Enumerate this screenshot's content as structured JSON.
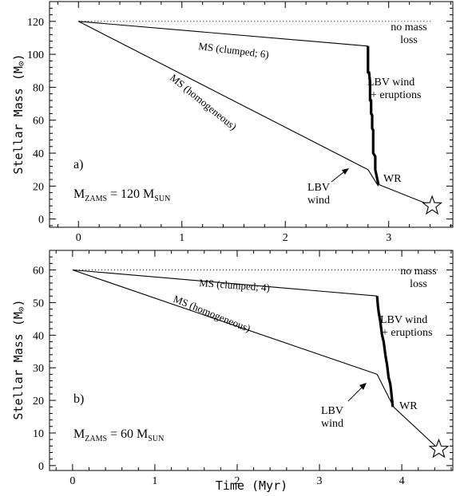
{
  "chart_data": [
    {
      "type": "line",
      "panel_label": "a)",
      "mass_label": {
        "prefix": "M",
        "sub1": "ZAMS",
        "mid": " = 120 M",
        "sub2": "SUN"
      },
      "ylabel": "Stellar Mass (M",
      "ylabel_symbol": "⊙",
      "ylabel_close": ")",
      "xlabel": "",
      "xlim": [
        -0.28,
        3.62
      ],
      "ylim": [
        -5,
        132
      ],
      "xticks": [
        0,
        1,
        2,
        3
      ],
      "yticks": [
        0,
        20,
        40,
        60,
        80,
        100,
        120
      ],
      "series": [
        {
          "name": "no mass loss",
          "style": "dotted",
          "x": [
            0,
            3.42
          ],
          "y": [
            120,
            120
          ]
        },
        {
          "name": "MS (clumped; 6)",
          "style": "thin",
          "x": [
            0,
            2.8
          ],
          "y": [
            120,
            105
          ]
        },
        {
          "name": "LBV wind + eruptions",
          "style": "thick",
          "x": [
            2.8,
            2.8,
            2.81,
            2.82,
            2.82,
            2.83,
            2.83,
            2.84,
            2.84,
            2.85,
            2.85,
            2.87,
            2.87,
            2.9
          ],
          "y": [
            105,
            89,
            89,
            83,
            72,
            72,
            64,
            63,
            55,
            54,
            40,
            38,
            30,
            21
          ]
        },
        {
          "name": "MS (homogeneous)",
          "style": "thin",
          "x": [
            0,
            2.8,
            2.9
          ],
          "y": [
            120,
            30,
            20
          ]
        },
        {
          "name": "WR",
          "style": "thin",
          "x": [
            2.9,
            3.42
          ],
          "y": [
            21,
            8
          ]
        }
      ],
      "annotations": {
        "no_mass_loss_1": "no mass",
        "no_mass_loss_2": "loss",
        "ms_clumped": "MS (clumped; 6)",
        "ms_homog": "MS (homogeneous)",
        "lbv_erupt_1": "LBV wind",
        "lbv_erupt_2": "+ eruptions",
        "lbv_wind_1": "LBV",
        "lbv_wind_2": "wind",
        "wr": "WR"
      },
      "star": {
        "x": 3.42,
        "y": 8
      }
    },
    {
      "type": "line",
      "panel_label": "b)",
      "mass_label": {
        "prefix": "M",
        "sub1": "ZAMS",
        "mid": " = 60 M",
        "sub2": "SUN"
      },
      "ylabel": "Stellar Mass (M",
      "ylabel_symbol": "⊙",
      "ylabel_close": ")",
      "xlabel": "Time (Myr)",
      "xlim": [
        -0.28,
        4.62
      ],
      "ylim": [
        -1.5,
        66
      ],
      "xticks": [
        0,
        1,
        2,
        3,
        4
      ],
      "yticks": [
        0,
        10,
        20,
        30,
        40,
        50,
        60
      ],
      "series": [
        {
          "name": "no mass loss",
          "style": "dotted",
          "x": [
            0,
            4.45
          ],
          "y": [
            60,
            60
          ]
        },
        {
          "name": "MS (clumped; 4)",
          "style": "thin",
          "x": [
            0,
            3.7
          ],
          "y": [
            60,
            52
          ]
        },
        {
          "name": "LBV wind + eruptions",
          "style": "thick",
          "x": [
            3.7,
            3.71,
            3.72,
            3.74,
            3.75,
            3.76,
            3.78,
            3.79,
            3.8,
            3.82,
            3.83,
            3.84,
            3.86,
            3.87,
            3.89
          ],
          "y": [
            52,
            49,
            47,
            44,
            42,
            40,
            38,
            36,
            34,
            31,
            29,
            27,
            25,
            23,
            18
          ]
        },
        {
          "name": "MS (homogeneous)",
          "style": "thin",
          "x": [
            0,
            3.7,
            3.9
          ],
          "y": [
            60,
            28,
            18
          ]
        },
        {
          "name": "WR",
          "style": "thin",
          "x": [
            3.9,
            4.45
          ],
          "y": [
            18,
            5
          ]
        }
      ],
      "annotations": {
        "no_mass_loss_1": "no mass",
        "no_mass_loss_2": "loss",
        "ms_clumped": "MS (clumped; 4)",
        "ms_homog": "MS (homogeneous)",
        "lbv_erupt_1": "LBV wind",
        "lbv_erupt_2": "+ eruptions",
        "lbv_wind_1": "LBV",
        "lbv_wind_2": "wind",
        "wr": "WR"
      },
      "star": {
        "x": 4.45,
        "y": 5
      }
    }
  ]
}
